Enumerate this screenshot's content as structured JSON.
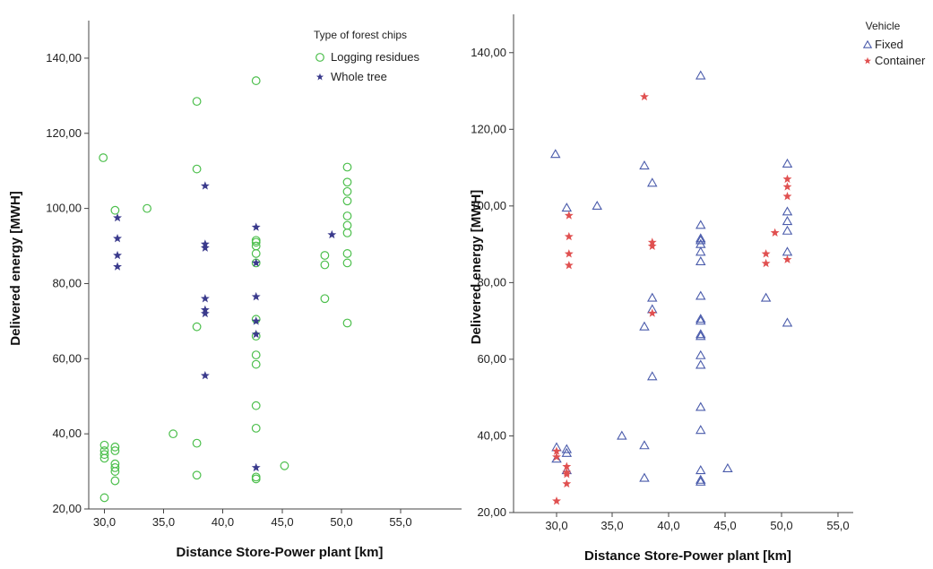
{
  "chart_data": [
    {
      "type": "scatter",
      "title": "",
      "xlabel": "Distance Store-Power plant [km]",
      "ylabel": "Delivered energy [MWH]",
      "xlim": [
        28.5,
        56.5
      ],
      "ylim": [
        20,
        150
      ],
      "xticks": [
        "30,0",
        "35,0",
        "40,0",
        "45,0",
        "50,0",
        "55,0"
      ],
      "yticks": [
        "20,00",
        "40,00",
        "60,00",
        "80,00",
        "100,00",
        "120,00",
        "140,00"
      ],
      "legend_title": "Type of forest chips",
      "legend_position": "top-right",
      "series": [
        {
          "name": "Logging residues",
          "color": "#4cbf4c",
          "marker": "circle",
          "points": [
            [
              29.9,
              113.5
            ],
            [
              30.0,
              37.0
            ],
            [
              30.0,
              35.5
            ],
            [
              30.0,
              34.5
            ],
            [
              30.0,
              33.5
            ],
            [
              30.0,
              23.0
            ],
            [
              30.9,
              99.5
            ],
            [
              30.9,
              36.5
            ],
            [
              30.9,
              35.5
            ],
            [
              30.9,
              32.0
            ],
            [
              30.9,
              31.0
            ],
            [
              30.9,
              30.0
            ],
            [
              30.9,
              27.5
            ],
            [
              33.6,
              100.0
            ],
            [
              35.8,
              40.0
            ],
            [
              37.8,
              128.5
            ],
            [
              37.8,
              110.5
            ],
            [
              37.8,
              68.5
            ],
            [
              37.8,
              37.5
            ],
            [
              37.8,
              29.0
            ],
            [
              42.8,
              134.0
            ],
            [
              42.8,
              91.5
            ],
            [
              42.8,
              91.0
            ],
            [
              42.8,
              90.0
            ],
            [
              42.8,
              88.0
            ],
            [
              42.8,
              85.5
            ],
            [
              42.8,
              70.5
            ],
            [
              42.8,
              66.0
            ],
            [
              42.8,
              61.0
            ],
            [
              42.8,
              58.5
            ],
            [
              42.8,
              47.5
            ],
            [
              42.8,
              41.5
            ],
            [
              42.8,
              28.5
            ],
            [
              42.8,
              28.0
            ],
            [
              45.2,
              31.5
            ],
            [
              48.6,
              87.5
            ],
            [
              48.6,
              85.0
            ],
            [
              48.6,
              76.0
            ],
            [
              50.5,
              111.0
            ],
            [
              50.5,
              107.0
            ],
            [
              50.5,
              104.5
            ],
            [
              50.5,
              102.0
            ],
            [
              50.5,
              98.0
            ],
            [
              50.5,
              95.5
            ],
            [
              50.5,
              93.5
            ],
            [
              50.5,
              88.0
            ],
            [
              50.5,
              85.5
            ],
            [
              50.5,
              69.5
            ]
          ]
        },
        {
          "name": "Whole tree",
          "color": "#3a3a8c",
          "marker": "star",
          "points": [
            [
              31.1,
              97.5
            ],
            [
              31.1,
              92.0
            ],
            [
              31.1,
              87.5
            ],
            [
              31.1,
              84.5
            ],
            [
              38.5,
              106.0
            ],
            [
              38.5,
              90.5
            ],
            [
              38.5,
              89.5
            ],
            [
              38.5,
              76.0
            ],
            [
              38.5,
              73.0
            ],
            [
              38.5,
              72.0
            ],
            [
              38.5,
              55.5
            ],
            [
              42.8,
              95.0
            ],
            [
              42.8,
              85.5
            ],
            [
              42.8,
              76.5
            ],
            [
              42.8,
              70.0
            ],
            [
              42.8,
              66.5
            ],
            [
              42.8,
              31.0
            ],
            [
              49.2,
              93.0
            ]
          ]
        }
      ]
    },
    {
      "type": "scatter",
      "title": "",
      "xlabel": "Distance Store-Power plant [km]",
      "ylabel": "Delivered energy [MWH]",
      "xlim": [
        28.5,
        56.5
      ],
      "ylim": [
        20,
        150
      ],
      "xticks": [
        "30,0",
        "35,0",
        "40,0",
        "45,0",
        "50,0",
        "55,0"
      ],
      "yticks": [
        "20,00",
        "40,00",
        "60,00",
        "80,00",
        "100,00",
        "120,00",
        "140,00"
      ],
      "legend_title": "Vehicle",
      "legend_position": "top-right",
      "series": [
        {
          "name": "Fixed",
          "color": "#4a5bab",
          "marker": "triangle",
          "points": [
            [
              29.9,
              113.5
            ],
            [
              30.0,
              37.0
            ],
            [
              30.0,
              34.0
            ],
            [
              30.9,
              99.5
            ],
            [
              30.9,
              36.5
            ],
            [
              30.9,
              35.5
            ],
            [
              30.9,
              31.0
            ],
            [
              33.6,
              100.0
            ],
            [
              35.8,
              40.0
            ],
            [
              37.8,
              110.5
            ],
            [
              37.8,
              68.5
            ],
            [
              37.8,
              37.5
            ],
            [
              37.8,
              29.0
            ],
            [
              38.5,
              106.0
            ],
            [
              38.5,
              76.0
            ],
            [
              38.5,
              73.0
            ],
            [
              38.5,
              55.5
            ],
            [
              42.8,
              134.0
            ],
            [
              42.8,
              95.0
            ],
            [
              42.8,
              91.5
            ],
            [
              42.8,
              91.0
            ],
            [
              42.8,
              90.0
            ],
            [
              42.8,
              88.0
            ],
            [
              42.8,
              85.5
            ],
            [
              42.8,
              76.5
            ],
            [
              42.8,
              70.5
            ],
            [
              42.8,
              70.0
            ],
            [
              42.8,
              66.5
            ],
            [
              42.8,
              66.0
            ],
            [
              42.8,
              61.0
            ],
            [
              42.8,
              58.5
            ],
            [
              42.8,
              47.5
            ],
            [
              42.8,
              41.5
            ],
            [
              42.8,
              31.0
            ],
            [
              42.8,
              28.5
            ],
            [
              42.8,
              28.0
            ],
            [
              45.2,
              31.5
            ],
            [
              48.6,
              76.0
            ],
            [
              50.5,
              111.0
            ],
            [
              50.5,
              98.5
            ],
            [
              50.5,
              96.0
            ],
            [
              50.5,
              93.5
            ],
            [
              50.5,
              88.0
            ],
            [
              50.5,
              69.5
            ]
          ]
        },
        {
          "name": "Container",
          "color": "#e05050",
          "marker": "star",
          "points": [
            [
              30.0,
              36.0
            ],
            [
              30.0,
              34.5
            ],
            [
              30.0,
              23.0
            ],
            [
              31.1,
              97.5
            ],
            [
              31.1,
              92.0
            ],
            [
              31.1,
              87.5
            ],
            [
              31.1,
              84.5
            ],
            [
              30.9,
              32.0
            ],
            [
              30.9,
              30.5
            ],
            [
              30.9,
              30.0
            ],
            [
              30.9,
              27.5
            ],
            [
              37.8,
              128.5
            ],
            [
              38.5,
              90.5
            ],
            [
              38.5,
              89.5
            ],
            [
              38.5,
              72.0
            ],
            [
              48.6,
              87.5
            ],
            [
              48.6,
              85.0
            ],
            [
              49.4,
              93.0
            ],
            [
              50.5,
              107.0
            ],
            [
              50.5,
              105.0
            ],
            [
              50.5,
              102.5
            ],
            [
              50.5,
              86.0
            ]
          ]
        }
      ]
    }
  ]
}
